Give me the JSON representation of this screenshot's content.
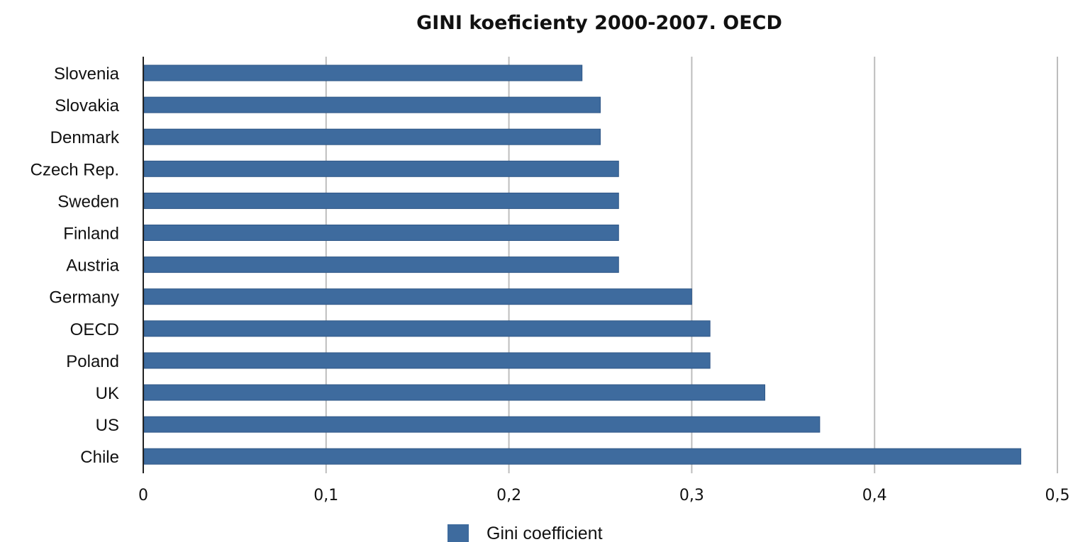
{
  "chart_data": {
    "type": "bar",
    "orientation": "horizontal",
    "title": "GINI koeficienty 2000-2007. OECD",
    "xlabel": "",
    "ylabel": "",
    "categories": [
      "Slovenia",
      "Slovakia",
      "Denmark",
      "Czech Rep.",
      "Sweden",
      "Finland",
      "Austria",
      "Germany",
      "OECD",
      "Poland",
      "UK",
      "US",
      "Chile"
    ],
    "series": [
      {
        "name": "Gini coefficient",
        "color": "#3e6b9e",
        "values": [
          0.24,
          0.25,
          0.25,
          0.26,
          0.26,
          0.26,
          0.26,
          0.3,
          0.31,
          0.31,
          0.34,
          0.37,
          0.48
        ]
      }
    ],
    "xlim": [
      0,
      0.5
    ],
    "xticks": [
      0,
      0.1,
      0.2,
      0.3,
      0.4,
      0.5
    ],
    "xtick_labels": [
      "0",
      "0,1",
      "0,2",
      "0,3",
      "0,4",
      "0,5"
    ],
    "grid": "vertical",
    "legend": "bottom-center"
  }
}
